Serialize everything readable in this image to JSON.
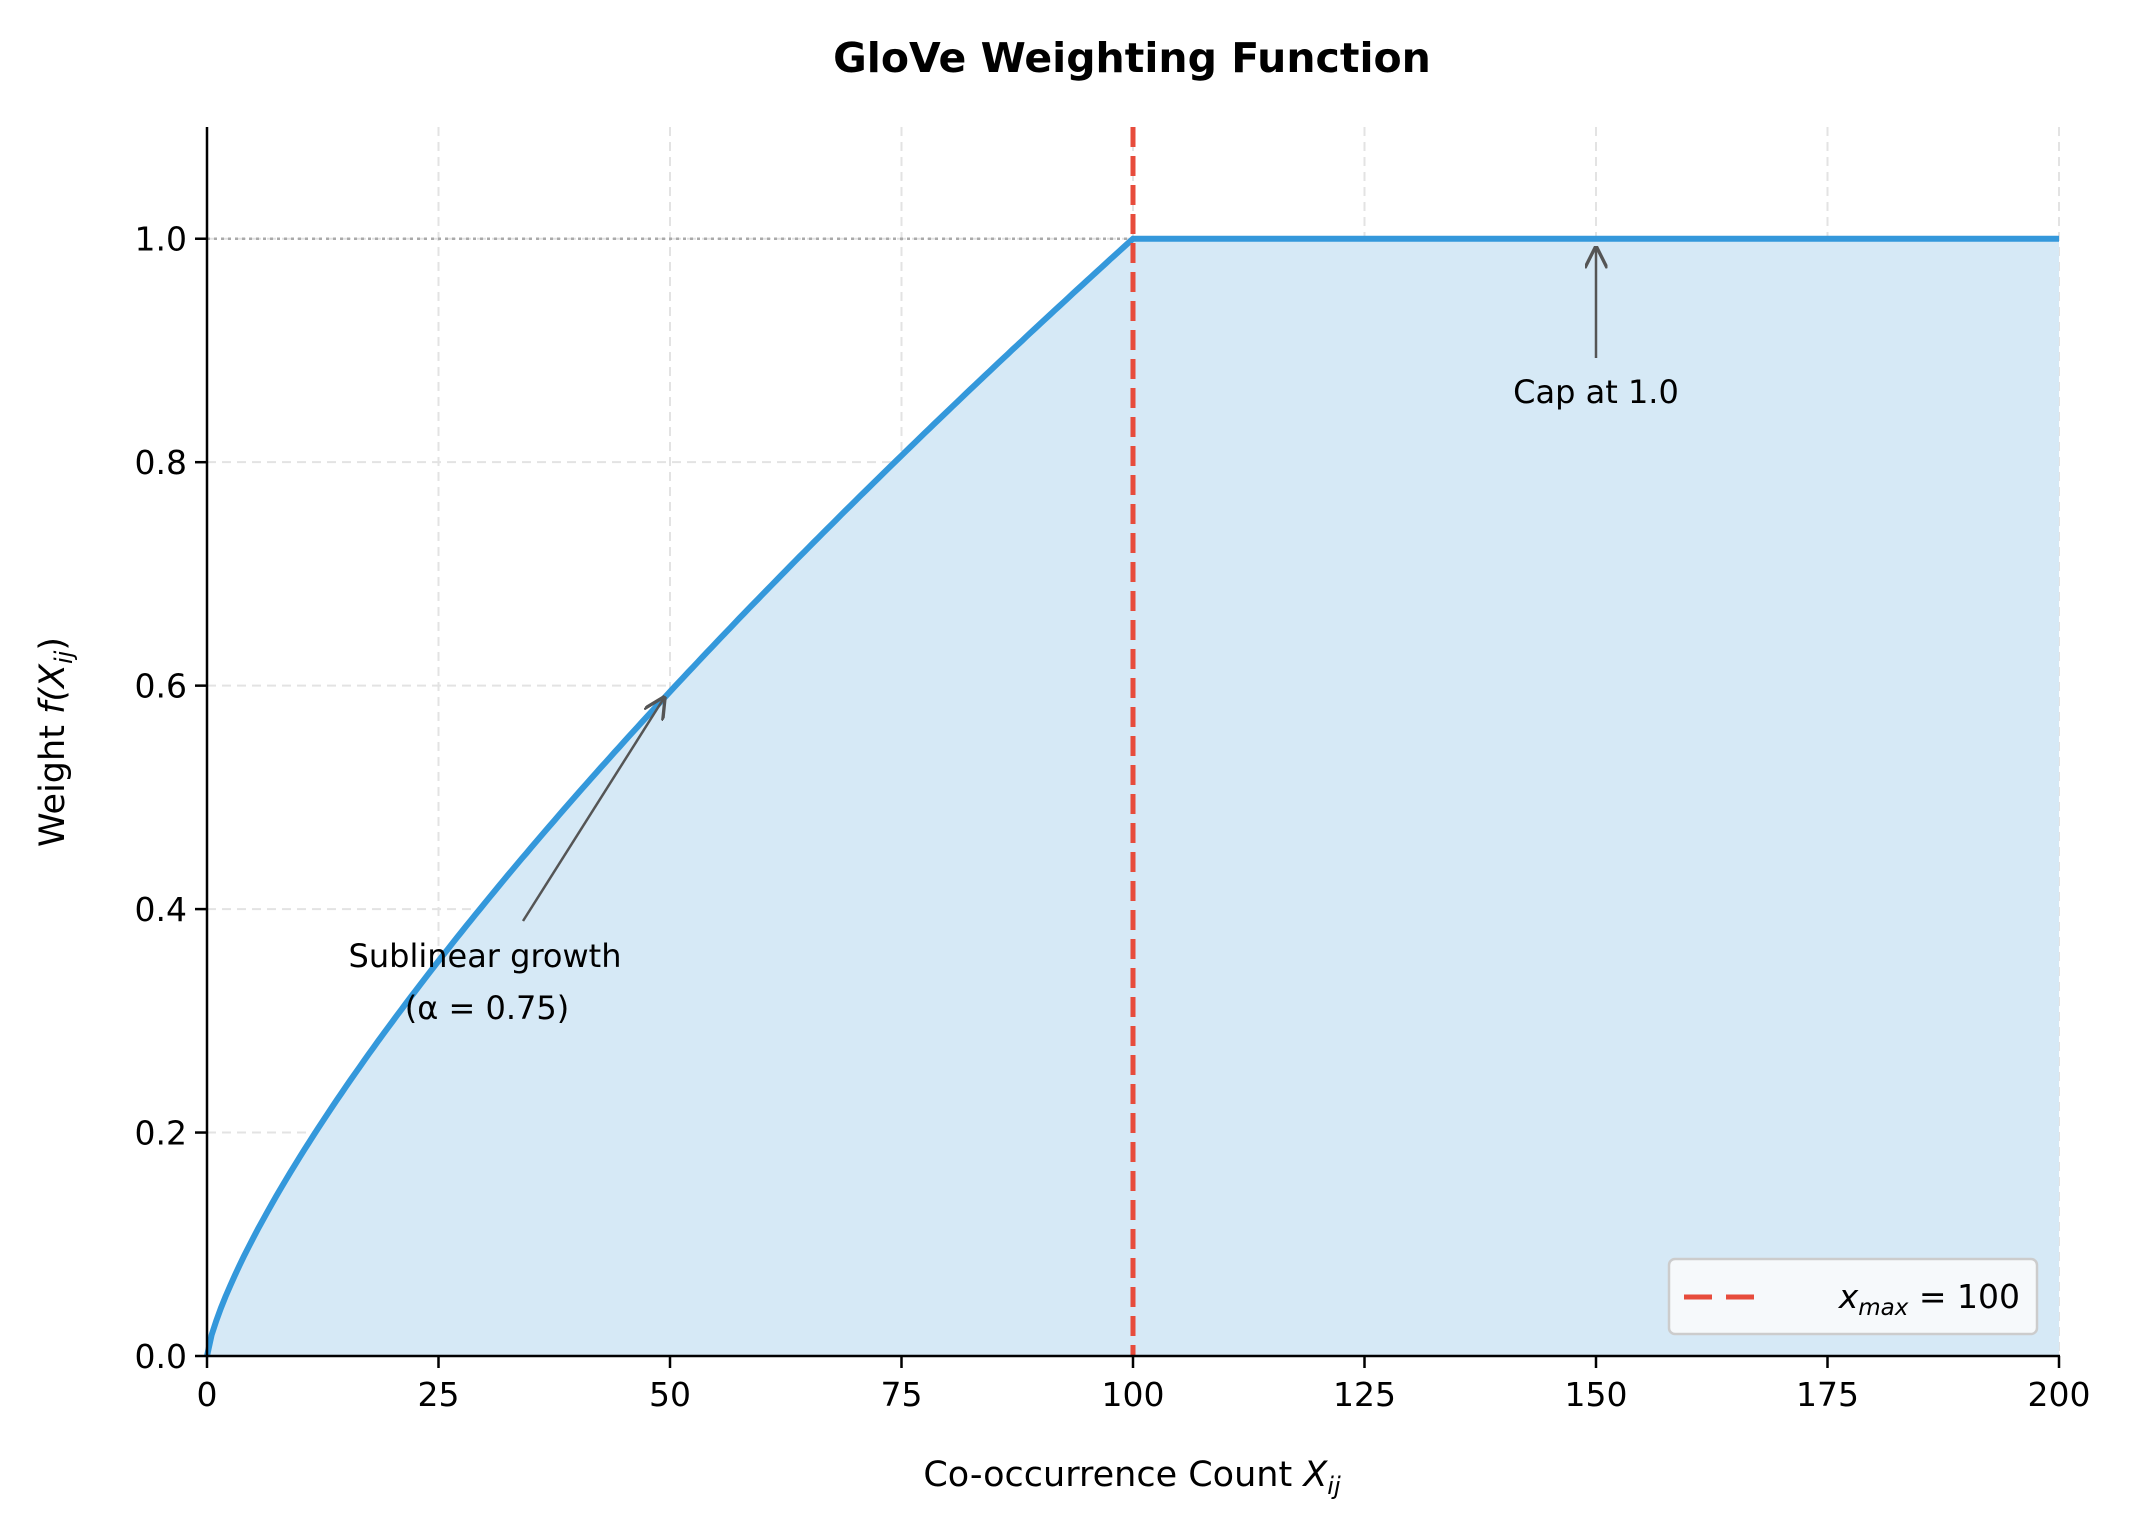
{
  "chart_data": {
    "type": "area",
    "title": "GloVe Weighting Function",
    "xlabel": "Co-occurrence Count X_ij",
    "xlabel_main": "Co-occurrence Count ",
    "xlabel_var": "X",
    "xlabel_sub": "ij",
    "ylabel_main": "Weight ",
    "ylabel_func": "f",
    "ylabel_var": "(X",
    "ylabel_sub": "ij",
    "ylabel_close": ")",
    "xlim": [
      0,
      200
    ],
    "ylim": [
      0,
      1.1
    ],
    "xticks": [
      "0",
      "25",
      "50",
      "75",
      "100",
      "125",
      "150",
      "175",
      "200"
    ],
    "yticks": [
      "0.0",
      "0.2",
      "0.4",
      "0.6",
      "0.8",
      "1.0"
    ],
    "grid": true,
    "function": "f(x) = (x/100)^0.75 for x < 100, else 1",
    "alpha": 0.75,
    "x_max": 100,
    "series": [
      {
        "x": [
          0,
          10,
          20,
          30,
          40,
          50,
          60,
          70,
          80,
          90,
          100,
          125,
          150,
          175,
          200
        ],
        "y": [
          0,
          0.178,
          0.299,
          0.405,
          0.503,
          0.595,
          0.682,
          0.765,
          0.846,
          0.924,
          1.0,
          1.0,
          1.0,
          1.0,
          1.0
        ],
        "color": "#3498db"
      }
    ],
    "vline": {
      "x": 100,
      "color": "#e74c3c",
      "style": "dashed"
    },
    "hline": {
      "y": 1.0,
      "color": "#999999",
      "style": "dotted"
    },
    "legend": {
      "placement": "bottom-right",
      "label_var": "x",
      "label_sub": "max",
      "label_rest": " = 100"
    },
    "annotations": [
      {
        "text_line1": "Sublinear growth",
        "text_line2": "(α = 0.75)",
        "points_to": [
          50,
          0.59
        ]
      },
      {
        "text_line1": "Cap at 1.0",
        "points_to": [
          150,
          1.0
        ]
      }
    ],
    "fill_color": "#d6e9f6"
  }
}
